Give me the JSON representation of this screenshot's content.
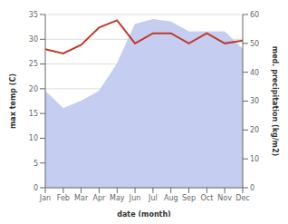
{
  "chart_data": {
    "type": "combo",
    "categories": [
      "Jan",
      "Feb",
      "Mar",
      "Apr",
      "May",
      "Jun",
      "Jul",
      "Aug",
      "Sep",
      "Oct",
      "Nov",
      "Dec"
    ],
    "series": [
      {
        "type": "area",
        "color": "#c5cef0",
        "values": [
          19.5,
          16.0,
          17.5,
          19.5,
          25.0,
          33.0,
          34.0,
          33.5,
          31.5,
          31.5,
          31.5,
          28.0
        ]
      },
      {
        "type": "line",
        "color": "#c0392b",
        "axis": "y2",
        "values": [
          48.0,
          46.5,
          49.5,
          55.5,
          58.0,
          50.0,
          53.5,
          53.5,
          50.0,
          53.5,
          50.0,
          51.0
        ]
      }
    ],
    "xlabel": "date (month)",
    "ylabel": "max temp (C)",
    "y2label": "med. precipitation (kg/m2)",
    "ylim": [
      0,
      35
    ],
    "yticks": [
      0,
      5,
      10,
      15,
      20,
      25,
      30,
      35
    ],
    "y2lim": [
      0,
      60
    ],
    "y2ticks": [
      0,
      10,
      20,
      30,
      40,
      50,
      60
    ],
    "grid": true
  }
}
